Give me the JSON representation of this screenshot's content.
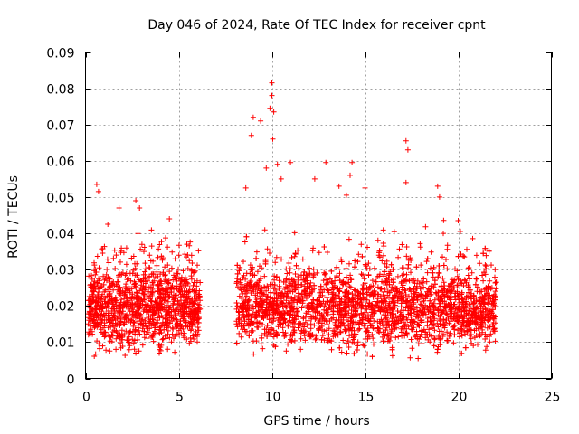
{
  "chart_data": {
    "type": "scatter",
    "title": "Day 046 of 2024, Rate Of TEC Index for receiver cpnt",
    "xlabel": "GPS time / hours",
    "ylabel": "ROTI / TECUs",
    "xlim": [
      0,
      25
    ],
    "ylim": [
      0,
      0.09
    ],
    "xticks": [
      0,
      5,
      10,
      15,
      20,
      25
    ],
    "xtick_labels": [
      "0",
      "5",
      "10",
      "15",
      "20",
      "25"
    ],
    "yticks": [
      0,
      0.01,
      0.02,
      0.03,
      0.04,
      0.05,
      0.06,
      0.07,
      0.08,
      0.09
    ],
    "ytick_labels": [
      "0",
      "0.01",
      "0.02",
      "0.03",
      "0.04",
      "0.05",
      "0.06",
      "0.07",
      "0.08",
      "0.09"
    ],
    "grid": true,
    "marker": "+",
    "color": "#ff0000",
    "series": [
      {
        "name": "ROTI",
        "segments": [
          {
            "x_start": 0.15,
            "x_end": 6.15,
            "approx_median": 0.019
          },
          {
            "x_start": 8.1,
            "x_end": 22.05,
            "approx_median": 0.019
          }
        ],
        "notable_points": [
          {
            "x": 0.6,
            "y": 0.0535
          },
          {
            "x": 0.7,
            "y": 0.0515
          },
          {
            "x": 1.2,
            "y": 0.0425
          },
          {
            "x": 1.8,
            "y": 0.047
          },
          {
            "x": 2.7,
            "y": 0.049
          },
          {
            "x": 2.9,
            "y": 0.047
          },
          {
            "x": 4.5,
            "y": 0.044
          },
          {
            "x": 8.6,
            "y": 0.0525
          },
          {
            "x": 8.9,
            "y": 0.067
          },
          {
            "x": 9.0,
            "y": 0.072
          },
          {
            "x": 9.4,
            "y": 0.071
          },
          {
            "x": 9.7,
            "y": 0.058
          },
          {
            "x": 9.9,
            "y": 0.0745
          },
          {
            "x": 10.0,
            "y": 0.0815
          },
          {
            "x": 10.0,
            "y": 0.078
          },
          {
            "x": 10.1,
            "y": 0.0735
          },
          {
            "x": 10.05,
            "y": 0.066
          },
          {
            "x": 10.3,
            "y": 0.059
          },
          {
            "x": 10.5,
            "y": 0.055
          },
          {
            "x": 11.0,
            "y": 0.0595
          },
          {
            "x": 12.3,
            "y": 0.055
          },
          {
            "x": 12.9,
            "y": 0.0595
          },
          {
            "x": 13.6,
            "y": 0.053
          },
          {
            "x": 14.0,
            "y": 0.0505
          },
          {
            "x": 14.2,
            "y": 0.056
          },
          {
            "x": 14.3,
            "y": 0.0595
          },
          {
            "x": 15.0,
            "y": 0.0525
          },
          {
            "x": 17.2,
            "y": 0.0655
          },
          {
            "x": 17.3,
            "y": 0.063
          },
          {
            "x": 17.2,
            "y": 0.054
          },
          {
            "x": 18.9,
            "y": 0.053
          },
          {
            "x": 19.0,
            "y": 0.05
          },
          {
            "x": 19.2,
            "y": 0.04
          },
          {
            "x": 20.0,
            "y": 0.0435
          }
        ]
      }
    ]
  }
}
